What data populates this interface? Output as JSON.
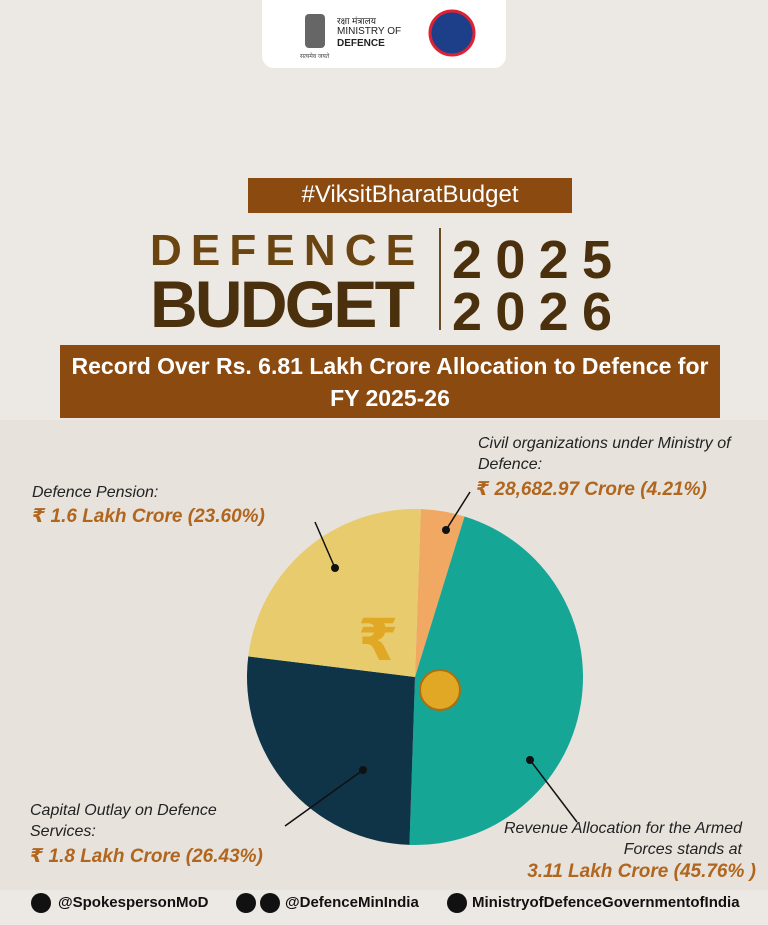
{
  "header": {
    "hindi": "रक्षा मंत्रालय",
    "line1": "MINISTRY OF",
    "line2": "DEFENCE",
    "motto": "सत्यमेव जयते"
  },
  "hashtag": "#ViksitBharatBudget",
  "banner": {
    "word1": "DEFENCE",
    "word2": "BUDGET",
    "year1": "2025",
    "year2": "2026"
  },
  "chart_data": {
    "type": "pie",
    "title": "Record Over Rs. 6.81 Lakh Crore Allocation to Defence for FY 2025-26",
    "categories": [
      "Civil organizations under Ministry of Defence:",
      "Revenue Allocation for the Armed Forces stands at",
      "Capital Outlay on Defence Services:",
      "Defence Pension:"
    ],
    "values": [
      4.21,
      45.76,
      26.43,
      23.6
    ],
    "value_labels": [
      "₹ 28,682.97 Crore (4.21%)",
      "3.11 Lakh Crore (45.76% )",
      "₹ 1.8 Lakh Crore (26.43%)",
      "₹ 1.6 Lakh Crore (23.60%)"
    ],
    "colors": [
      "#f0a862",
      "#15a696",
      "#0f3347",
      "#e8cb6c"
    ]
  },
  "footer": {
    "x": "@SpokespersonMoD",
    "facebook": "@DefenceMinIndia",
    "youtube": "MinistryofDefenceGovernmentofIndia"
  }
}
